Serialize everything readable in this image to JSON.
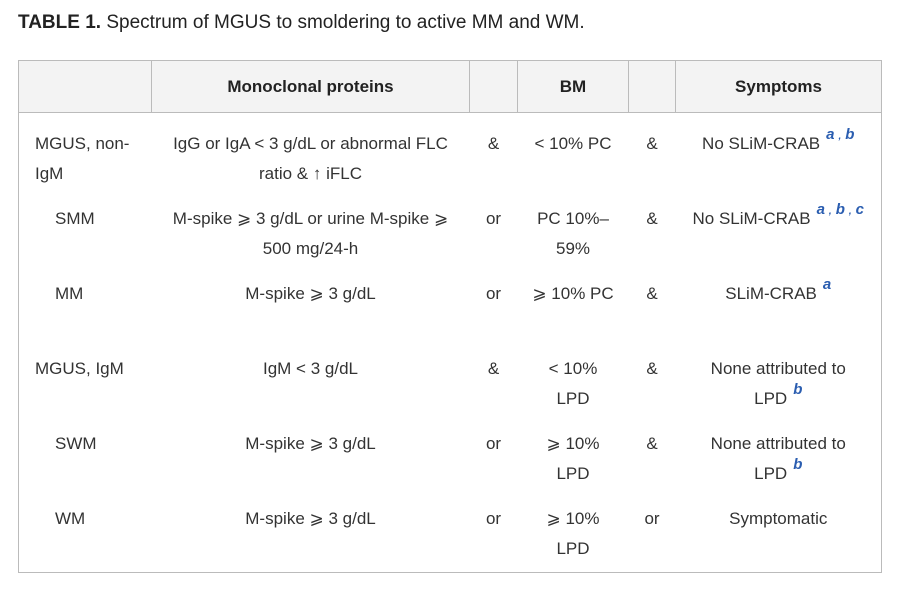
{
  "title": {
    "label": "TABLE 1.",
    "text": "Spectrum of MGUS to smoldering to active MM and WM."
  },
  "table": {
    "header": [
      "Monoclonal proteins",
      "BM",
      "Symptoms"
    ],
    "note_separator": ",",
    "rows": [
      {
        "label": "MGUS, non-IgM",
        "proteins": "IgG or IgA < 3 g/dL or abnormal FLC ratio & ↑ iFLC",
        "op1": "&",
        "bm": "< 10% PC",
        "op2": "&",
        "symptoms": "No SLiM-CRAB",
        "notes": [
          "a",
          "b"
        ]
      },
      {
        "label": "SMM",
        "proteins": "M-spike ⩾ 3 g/dL or urine M-spike ⩾ 500 mg/24-h",
        "op1": "or",
        "bm": "PC 10%–59%",
        "op2": "&",
        "symptoms": "No SLiM-CRAB",
        "notes": [
          "a",
          "b",
          "c"
        ]
      },
      {
        "label": "MM",
        "proteins": "M-spike ⩾ 3 g/dL",
        "op1": "or",
        "bm": "⩾ 10% PC",
        "op2": "&",
        "symptoms": "SLiM-CRAB",
        "notes": [
          "a"
        ]
      },
      {
        "label": "MGUS, IgM",
        "proteins": "IgM < 3 g/dL",
        "op1": "&",
        "bm": "< 10% LPD",
        "op2": "&",
        "symptoms": "None attributed to LPD",
        "notes": [
          "b"
        ]
      },
      {
        "label": "SWM",
        "proteins": "M-spike ⩾ 3 g/dL",
        "op1": "or",
        "bm": "⩾ 10% LPD",
        "op2": "&",
        "symptoms": "None attributed to LPD",
        "notes": [
          "b"
        ]
      },
      {
        "label": "WM",
        "proteins": "M-spike ⩾ 3 g/dL",
        "op1": "or",
        "bm": "⩾ 10% LPD",
        "op2": "or",
        "symptoms": "Symptomatic"
      }
    ]
  }
}
